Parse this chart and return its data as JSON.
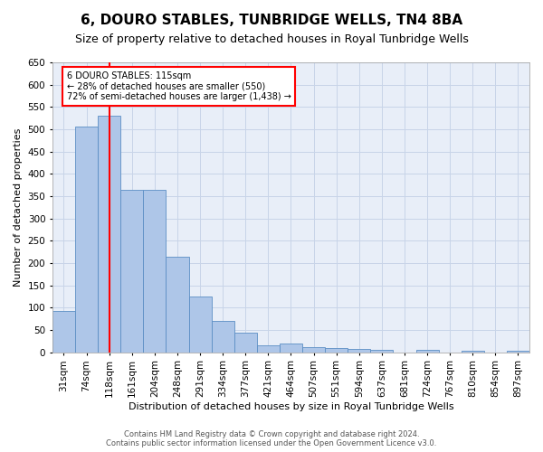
{
  "title": "6, DOURO STABLES, TUNBRIDGE WELLS, TN4 8BA",
  "subtitle": "Size of property relative to detached houses in Royal Tunbridge Wells",
  "xlabel": "Distribution of detached houses by size in Royal Tunbridge Wells",
  "ylabel": "Number of detached properties",
  "footer_line1": "Contains HM Land Registry data © Crown copyright and database right 2024.",
  "footer_line2": "Contains public sector information licensed under the Open Government Licence v3.0.",
  "categories": [
    "31sqm",
    "74sqm",
    "118sqm",
    "161sqm",
    "204sqm",
    "248sqm",
    "291sqm",
    "334sqm",
    "377sqm",
    "421sqm",
    "464sqm",
    "507sqm",
    "551sqm",
    "594sqm",
    "637sqm",
    "681sqm",
    "724sqm",
    "767sqm",
    "810sqm",
    "854sqm",
    "897sqm"
  ],
  "values": [
    93,
    507,
    530,
    365,
    365,
    215,
    125,
    70,
    43,
    15,
    19,
    12,
    10,
    7,
    5,
    0,
    5,
    0,
    3,
    0,
    3
  ],
  "bar_color": "#aec6e8",
  "bar_edge_color": "#5b8ec4",
  "property_line_x": 2.0,
  "annotation_text_line1": "6 DOURO STABLES: 115sqm",
  "annotation_text_line2": "← 28% of detached houses are smaller (550)",
  "annotation_text_line3": "72% of semi-detached houses are larger (1,438) →",
  "ylim": [
    0,
    650
  ],
  "yticks": [
    0,
    50,
    100,
    150,
    200,
    250,
    300,
    350,
    400,
    450,
    500,
    550,
    600,
    650
  ],
  "background_color": "#ffffff",
  "ax_background_color": "#e8eef8",
  "grid_color": "#c8d4e8",
  "title_fontsize": 11,
  "subtitle_fontsize": 9,
  "axis_label_fontsize": 8,
  "tick_fontsize": 7.5,
  "footer_fontsize": 6
}
